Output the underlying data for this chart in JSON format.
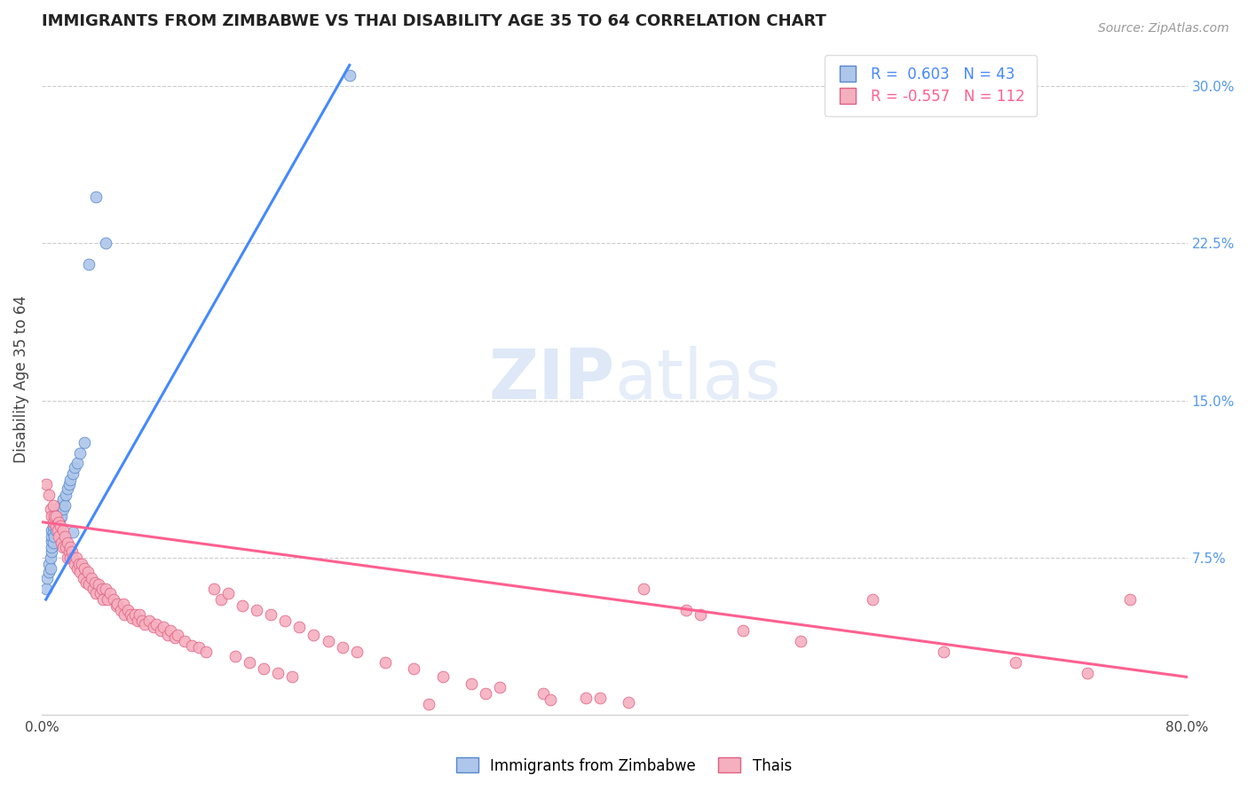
{
  "title": "IMMIGRANTS FROM ZIMBABWE VS THAI DISABILITY AGE 35 TO 64 CORRELATION CHART",
  "source": "Source: ZipAtlas.com",
  "ylabel": "Disability Age 35 to 64",
  "xlim": [
    0.0,
    0.8
  ],
  "ylim": [
    0.0,
    0.32
  ],
  "ytick_labels_right": [
    "7.5%",
    "15.0%",
    "22.5%",
    "30.0%"
  ],
  "yticks_right": [
    0.075,
    0.15,
    0.225,
    0.3
  ],
  "legend_label1": "Immigrants from Zimbabwe",
  "legend_label2": "Thais",
  "color_blue": "#aec6ea",
  "color_blue_dark": "#5588cc",
  "color_pink": "#f5b0c0",
  "color_pink_dark": "#e06080",
  "color_blue_line": "#4488ff",
  "color_pink_line": "#ff6090",
  "color_axis_right": "#5599ee",
  "color_grid": "#cccccc",
  "watermark_color": "#d0dff5",
  "zim_x": [
    0.003,
    0.004,
    0.005,
    0.005,
    0.006,
    0.006,
    0.007,
    0.007,
    0.007,
    0.007,
    0.007,
    0.008,
    0.008,
    0.008,
    0.009,
    0.009,
    0.01,
    0.01,
    0.01,
    0.011,
    0.011,
    0.012,
    0.012,
    0.013,
    0.013,
    0.014,
    0.015,
    0.015,
    0.016,
    0.017,
    0.018,
    0.019,
    0.02,
    0.022,
    0.023,
    0.025,
    0.027,
    0.03,
    0.033,
    0.038,
    0.045,
    0.022,
    0.215
  ],
  "zim_y": [
    0.06,
    0.065,
    0.068,
    0.072,
    0.07,
    0.075,
    0.078,
    0.08,
    0.083,
    0.085,
    0.088,
    0.082,
    0.087,
    0.09,
    0.085,
    0.092,
    0.088,
    0.093,
    0.095,
    0.09,
    0.095,
    0.092,
    0.098,
    0.094,
    0.1,
    0.095,
    0.098,
    0.103,
    0.1,
    0.105,
    0.108,
    0.11,
    0.112,
    0.115,
    0.118,
    0.12,
    0.125,
    0.13,
    0.215,
    0.247,
    0.225,
    0.087,
    0.305
  ],
  "zim_line_x": [
    0.003,
    0.215
  ],
  "zim_line_y": [
    0.055,
    0.31
  ],
  "thai_x": [
    0.003,
    0.005,
    0.006,
    0.007,
    0.008,
    0.008,
    0.009,
    0.01,
    0.01,
    0.011,
    0.012,
    0.012,
    0.013,
    0.014,
    0.015,
    0.015,
    0.016,
    0.017,
    0.018,
    0.018,
    0.019,
    0.02,
    0.02,
    0.021,
    0.022,
    0.023,
    0.024,
    0.025,
    0.026,
    0.027,
    0.028,
    0.029,
    0.03,
    0.031,
    0.032,
    0.033,
    0.035,
    0.036,
    0.037,
    0.038,
    0.04,
    0.041,
    0.042,
    0.043,
    0.045,
    0.046,
    0.048,
    0.05,
    0.052,
    0.053,
    0.055,
    0.057,
    0.058,
    0.06,
    0.062,
    0.063,
    0.065,
    0.067,
    0.068,
    0.07,
    0.072,
    0.075,
    0.078,
    0.08,
    0.083,
    0.085,
    0.088,
    0.09,
    0.093,
    0.095,
    0.1,
    0.105,
    0.11,
    0.115,
    0.12,
    0.125,
    0.13,
    0.135,
    0.14,
    0.145,
    0.15,
    0.155,
    0.16,
    0.165,
    0.17,
    0.175,
    0.18,
    0.19,
    0.2,
    0.21,
    0.22,
    0.24,
    0.26,
    0.28,
    0.3,
    0.32,
    0.35,
    0.38,
    0.41,
    0.45,
    0.49,
    0.53,
    0.58,
    0.63,
    0.68,
    0.73,
    0.76,
    0.39,
    0.27,
    0.31,
    0.355,
    0.42,
    0.46
  ],
  "thai_y": [
    0.11,
    0.105,
    0.098,
    0.095,
    0.1,
    0.092,
    0.095,
    0.09,
    0.095,
    0.088,
    0.092,
    0.085,
    0.09,
    0.082,
    0.088,
    0.08,
    0.085,
    0.08,
    0.082,
    0.075,
    0.078,
    0.08,
    0.075,
    0.078,
    0.075,
    0.072,
    0.075,
    0.07,
    0.072,
    0.068,
    0.072,
    0.065,
    0.07,
    0.063,
    0.068,
    0.062,
    0.065,
    0.06,
    0.063,
    0.058,
    0.062,
    0.058,
    0.06,
    0.055,
    0.06,
    0.055,
    0.058,
    0.055,
    0.052,
    0.053,
    0.05,
    0.053,
    0.048,
    0.05,
    0.048,
    0.046,
    0.048,
    0.045,
    0.048,
    0.045,
    0.043,
    0.045,
    0.042,
    0.043,
    0.04,
    0.042,
    0.038,
    0.04,
    0.037,
    0.038,
    0.035,
    0.033,
    0.032,
    0.03,
    0.06,
    0.055,
    0.058,
    0.028,
    0.052,
    0.025,
    0.05,
    0.022,
    0.048,
    0.02,
    0.045,
    0.018,
    0.042,
    0.038,
    0.035,
    0.032,
    0.03,
    0.025,
    0.022,
    0.018,
    0.015,
    0.013,
    0.01,
    0.008,
    0.006,
    0.05,
    0.04,
    0.035,
    0.055,
    0.03,
    0.025,
    0.02,
    0.055,
    0.008,
    0.005,
    0.01,
    0.007,
    0.06,
    0.048
  ],
  "thai_line_x": [
    0.0,
    0.8
  ],
  "thai_line_y": [
    0.092,
    0.018
  ]
}
